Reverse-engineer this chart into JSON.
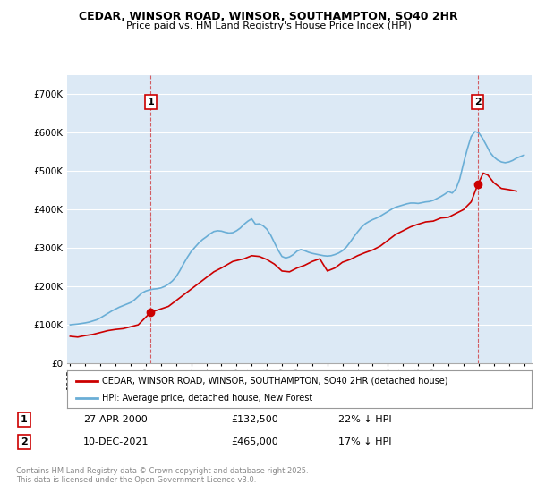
{
  "title": "CEDAR, WINSOR ROAD, WINSOR, SOUTHAMPTON, SO40 2HR",
  "subtitle": "Price paid vs. HM Land Registry's House Price Index (HPI)",
  "ylim": [
    0,
    750000
  ],
  "xlim_start": 1994.8,
  "xlim_end": 2025.5,
  "background_color": "#ffffff",
  "plot_bg_color": "#dce9f5",
  "grid_color": "#ffffff",
  "hpi_color": "#6aaed6",
  "price_color": "#cc0000",
  "marker1_x": 2000.32,
  "marker1_y": 132500,
  "marker2_x": 2021.94,
  "marker2_y": 465000,
  "vline1_x": 2000.32,
  "vline2_x": 2021.94,
  "legend_price_label": "CEDAR, WINSOR ROAD, WINSOR, SOUTHAMPTON, SO40 2HR (detached house)",
  "legend_hpi_label": "HPI: Average price, detached house, New Forest",
  "annotation1_box": "1",
  "annotation1_date": "27-APR-2000",
  "annotation1_price": "£132,500",
  "annotation1_hpi": "22% ↓ HPI",
  "annotation2_box": "2",
  "annotation2_date": "10-DEC-2021",
  "annotation2_price": "£465,000",
  "annotation2_hpi": "17% ↓ HPI",
  "footnote": "Contains HM Land Registry data © Crown copyright and database right 2025.\nThis data is licensed under the Open Government Licence v3.0.",
  "hpi_data_x": [
    1995.0,
    1995.25,
    1995.5,
    1995.75,
    1996.0,
    1996.25,
    1996.5,
    1996.75,
    1997.0,
    1997.25,
    1997.5,
    1997.75,
    1998.0,
    1998.25,
    1998.5,
    1998.75,
    1999.0,
    1999.25,
    1999.5,
    1999.75,
    2000.0,
    2000.25,
    2000.5,
    2000.75,
    2001.0,
    2001.25,
    2001.5,
    2001.75,
    2002.0,
    2002.25,
    2002.5,
    2002.75,
    2003.0,
    2003.25,
    2003.5,
    2003.75,
    2004.0,
    2004.25,
    2004.5,
    2004.75,
    2005.0,
    2005.25,
    2005.5,
    2005.75,
    2006.0,
    2006.25,
    2006.5,
    2006.75,
    2007.0,
    2007.25,
    2007.5,
    2007.75,
    2008.0,
    2008.25,
    2008.5,
    2008.75,
    2009.0,
    2009.25,
    2009.5,
    2009.75,
    2010.0,
    2010.25,
    2010.5,
    2010.75,
    2011.0,
    2011.25,
    2011.5,
    2011.75,
    2012.0,
    2012.25,
    2012.5,
    2012.75,
    2013.0,
    2013.25,
    2013.5,
    2013.75,
    2014.0,
    2014.25,
    2014.5,
    2014.75,
    2015.0,
    2015.25,
    2015.5,
    2015.75,
    2016.0,
    2016.25,
    2016.5,
    2016.75,
    2017.0,
    2017.25,
    2017.5,
    2017.75,
    2018.0,
    2018.25,
    2018.5,
    2018.75,
    2019.0,
    2019.25,
    2019.5,
    2019.75,
    2020.0,
    2020.25,
    2020.5,
    2020.75,
    2021.0,
    2021.25,
    2021.5,
    2021.75,
    2022.0,
    2022.25,
    2022.5,
    2022.75,
    2023.0,
    2023.25,
    2023.5,
    2023.75,
    2024.0,
    2024.25,
    2024.5,
    2024.75,
    2025.0
  ],
  "hpi_data_y": [
    100000,
    101000,
    102000,
    103500,
    105000,
    107000,
    110000,
    113000,
    118000,
    124000,
    130000,
    136000,
    141000,
    146000,
    150000,
    154000,
    158000,
    165000,
    174000,
    183000,
    188000,
    191000,
    193000,
    194000,
    196000,
    200000,
    206000,
    214000,
    225000,
    241000,
    259000,
    276000,
    291000,
    302000,
    313000,
    322000,
    329000,
    337000,
    343000,
    345000,
    344000,
    341000,
    339000,
    340000,
    345000,
    352000,
    362000,
    370000,
    376000,
    362000,
    363000,
    358000,
    349000,
    334000,
    314000,
    294000,
    278000,
    274000,
    277000,
    283000,
    292000,
    296000,
    293000,
    289000,
    286000,
    284000,
    282000,
    280000,
    279000,
    280000,
    283000,
    287000,
    293000,
    302000,
    315000,
    329000,
    342000,
    354000,
    363000,
    369000,
    374000,
    378000,
    383000,
    389000,
    395000,
    401000,
    406000,
    409000,
    412000,
    415000,
    417000,
    417000,
    416000,
    418000,
    420000,
    421000,
    424000,
    429000,
    434000,
    440000,
    447000,
    443000,
    454000,
    480000,
    521000,
    558000,
    590000,
    603000,
    600000,
    586000,
    568000,
    549000,
    537000,
    529000,
    524000,
    522000,
    524000,
    528000,
    534000,
    538000,
    542000
  ],
  "price_data_x": [
    1995.0,
    1995.5,
    1996.0,
    1996.5,
    1997.0,
    1997.5,
    1998.0,
    1998.5,
    1999.0,
    1999.5,
    2000.32,
    2001.5,
    2002.5,
    2003.5,
    2004.5,
    2005.0,
    2005.75,
    2006.5,
    2007.0,
    2007.5,
    2008.0,
    2008.5,
    2009.0,
    2009.5,
    2010.0,
    2010.5,
    2011.0,
    2011.5,
    2012.0,
    2012.5,
    2013.0,
    2013.5,
    2014.0,
    2014.5,
    2015.0,
    2015.5,
    2016.0,
    2016.5,
    2017.0,
    2017.5,
    2018.0,
    2018.5,
    2019.0,
    2019.5,
    2020.0,
    2020.5,
    2021.0,
    2021.5,
    2021.94,
    2022.3,
    2022.6,
    2023.0,
    2023.5,
    2024.0,
    2024.5
  ],
  "price_data_y": [
    70000,
    68000,
    72000,
    75000,
    80000,
    85000,
    88000,
    90000,
    95000,
    100000,
    132500,
    148000,
    178000,
    208000,
    238000,
    248000,
    265000,
    272000,
    280000,
    278000,
    270000,
    258000,
    240000,
    238000,
    248000,
    255000,
    265000,
    272000,
    240000,
    248000,
    263000,
    270000,
    280000,
    288000,
    295000,
    305000,
    320000,
    335000,
    345000,
    355000,
    362000,
    368000,
    370000,
    378000,
    380000,
    390000,
    400000,
    420000,
    465000,
    495000,
    490000,
    470000,
    455000,
    452000,
    448000
  ]
}
